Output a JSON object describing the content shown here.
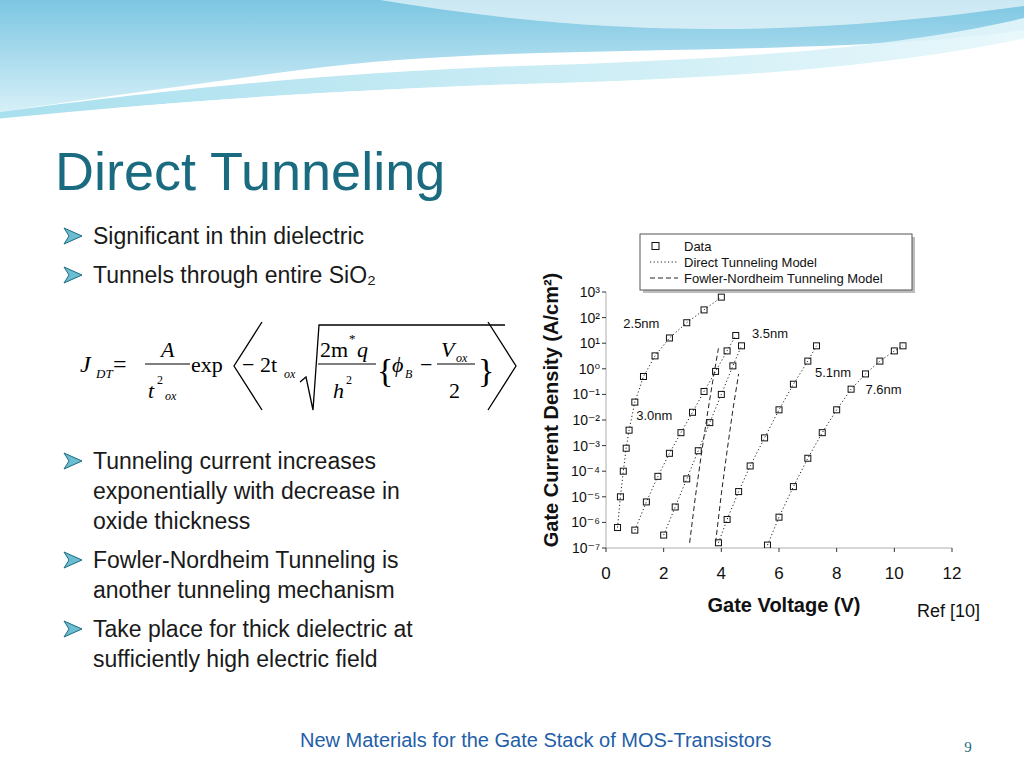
{
  "slide": {
    "title": "Direct Tunneling",
    "bullets_top": [
      [
        "Significant in thin dielectric"
      ],
      [
        "Tunnels through entire SiO₂"
      ]
    ],
    "formula": {
      "J": "J",
      "J_sub": "DT",
      "eq": "=",
      "num": "A",
      "den": "t",
      "den_sup": "2",
      "den_sub": "ox",
      "func": "exp",
      "coef": "− 2t",
      "coef_sub": "ox",
      "inner_num": "2m",
      "inner_sup": "*",
      "inner_q": "q",
      "inner_den": "h",
      "inner_den_sup": "2",
      "lbrace": "{",
      "phi": "ϕ",
      "phi_sub": "B",
      "minus": "−",
      "v": "V",
      "v_sub": "ox",
      "two": "2",
      "rbrace": "}"
    },
    "bullets_bottom": [
      [
        "Tunneling current increases",
        "exponentially with decrease in",
        "oxide thickness"
      ],
      [
        "Fowler-Nordheim Tunneling is",
        "another tunneling mechanism"
      ],
      [
        "Take place for thick dielectric at",
        "sufficiently high electric field"
      ]
    ],
    "ref": "Ref [10]",
    "footer": "New Materials for the Gate Stack of MOS-Transistors",
    "page": "9"
  },
  "chart_data": {
    "type": "line",
    "x_label": "Gate Voltage (V)",
    "y_label": "Gate Current Density (A/cm²)",
    "log": "y",
    "xlim": [
      0,
      12
    ],
    "ylim": [
      1e-07,
      1000
    ],
    "xticks": [
      0,
      2,
      4,
      6,
      8,
      10,
      12
    ],
    "yticks": [
      {
        "value": 1e-07,
        "label": "10⁻⁷"
      },
      {
        "value": 1e-06,
        "label": "10⁻⁶"
      },
      {
        "value": 1e-05,
        "label": "10⁻⁵"
      },
      {
        "value": 0.0001,
        "label": "10⁻⁴"
      },
      {
        "value": 0.001,
        "label": "10⁻³"
      },
      {
        "value": 0.01,
        "label": "10⁻²"
      },
      {
        "value": 0.1,
        "label": "10⁻¹"
      },
      {
        "value": 1,
        "label": "10⁰"
      },
      {
        "value": 10,
        "label": "10¹"
      },
      {
        "value": 100,
        "label": "10²"
      },
      {
        "value": 1000,
        "label": "10³"
      }
    ],
    "grid": false,
    "legend": "top",
    "series": [
      {
        "name": "Data",
        "marker": "square",
        "line_style": "none",
        "x": [
          0.4,
          0.5,
          0.6,
          0.7,
          0.8,
          1.0,
          1.3,
          1.7,
          2.2,
          2.8,
          3.4,
          4.0
        ],
        "values": [
          6.3e-07,
          1e-05,
          0.0001,
          0.00079,
          0.004,
          0.05,
          0.5,
          3.2,
          16,
          63,
          200,
          630
        ]
      },
      {
        "name": "Data",
        "marker": "square",
        "line_style": "none",
        "x": [
          1.0,
          1.4,
          1.8,
          2.2,
          2.6,
          3.0,
          3.4,
          3.8,
          4.2,
          4.5
        ],
        "values": [
          5e-07,
          6.3e-06,
          6.3e-05,
          0.0005,
          0.0032,
          0.02,
          0.13,
          0.79,
          5,
          20
        ]
      },
      {
        "name": "Data",
        "marker": "square",
        "line_style": "none",
        "x": [
          2.0,
          2.4,
          2.8,
          3.2,
          3.6,
          4.0,
          4.4,
          4.7
        ],
        "values": [
          3.2e-07,
          4e-06,
          5e-05,
          0.00063,
          0.0079,
          0.1,
          1.3,
          7.9
        ]
      },
      {
        "name": "Data",
        "marker": "square",
        "line_style": "none",
        "x": [
          3.9,
          4.2,
          4.6,
          5.0,
          5.5,
          6.0,
          6.5,
          7.0,
          7.3
        ],
        "values": [
          1.6e-07,
          1.3e-06,
          1.6e-05,
          0.00016,
          0.002,
          0.025,
          0.25,
          2,
          7.9
        ]
      },
      {
        "name": "Data",
        "marker": "square",
        "line_style": "none",
        "x": [
          5.6,
          6.0,
          6.5,
          7.0,
          7.5,
          8.0,
          8.5,
          9.0,
          9.5,
          10.0,
          10.3
        ],
        "values": [
          1.3e-07,
          1.6e-06,
          2.5e-05,
          0.00032,
          0.0032,
          0.025,
          0.16,
          0.63,
          2,
          5,
          7.9
        ]
      },
      {
        "name": "Direct Tunneling Model",
        "marker": "none",
        "line_style": "dotted",
        "x": [
          0.4,
          0.5,
          0.6,
          0.7,
          0.8,
          1.0,
          1.3,
          1.7,
          2.2,
          2.8,
          3.4,
          4.0
        ],
        "values": [
          6.3e-07,
          1e-05,
          0.0001,
          0.00079,
          0.004,
          0.05,
          0.5,
          3.2,
          16,
          63,
          200,
          630
        ]
      },
      {
        "name": "Direct Tunneling Model",
        "marker": "none",
        "line_style": "dotted",
        "x": [
          1.0,
          1.4,
          1.8,
          2.2,
          2.6,
          3.0,
          3.4,
          3.8,
          4.2,
          4.5
        ],
        "values": [
          5e-07,
          6.3e-06,
          6.3e-05,
          0.0005,
          0.0032,
          0.02,
          0.13,
          0.79,
          5,
          20
        ]
      },
      {
        "name": "Direct Tunneling Model",
        "marker": "none",
        "line_style": "dotted",
        "x": [
          2.0,
          2.4,
          2.8,
          3.2,
          3.6,
          4.0,
          4.4,
          4.7
        ],
        "values": [
          3.2e-07,
          4e-06,
          5e-05,
          0.00063,
          0.0079,
          0.1,
          1.3,
          7.9
        ]
      },
      {
        "name": "Direct Tunneling Model",
        "marker": "none",
        "line_style": "dotted",
        "x": [
          3.9,
          4.2,
          4.6,
          5.0,
          5.5,
          6.0,
          6.5,
          7.0,
          7.3
        ],
        "values": [
          1.6e-07,
          1.3e-06,
          1.6e-05,
          0.00016,
          0.002,
          0.025,
          0.25,
          2,
          7.9
        ]
      },
      {
        "name": "Direct Tunneling Model",
        "marker": "none",
        "line_style": "dotted",
        "x": [
          5.6,
          6.0,
          6.5,
          7.0,
          7.5,
          8.0,
          8.5,
          9.0,
          9.5,
          10.0,
          10.3
        ],
        "values": [
          1.3e-07,
          1.6e-06,
          2.5e-05,
          0.00032,
          0.0032,
          0.025,
          0.16,
          0.63,
          2,
          5,
          7.9
        ]
      },
      {
        "name": "Fowler-Nordheim Tunneling Model",
        "marker": "none",
        "line_style": "dashed",
        "x": [
          2.9,
          3.1,
          3.3,
          3.5,
          3.7,
          3.9
        ],
        "values": [
          1.6e-07,
          1e-05,
          0.0004,
          0.013,
          0.32,
          6.3
        ]
      },
      {
        "name": "Fowler-Nordheim Tunneling Model",
        "marker": "none",
        "line_style": "dashed",
        "x": [
          3.8,
          4.0,
          4.2,
          4.4,
          4.6
        ],
        "values": [
          1.6e-07,
          1.3e-05,
          0.00063,
          0.025,
          0.63
        ]
      }
    ],
    "annotations": [
      {
        "text": "2.5nm",
        "x": 0.6,
        "y": 40
      },
      {
        "text": "3.0nm",
        "x": 1.05,
        "y": 0.01
      },
      {
        "text": "3.5nm",
        "x": 5.06,
        "y": 16
      },
      {
        "text": "5.1nm",
        "x": 7.25,
        "y": 0.5
      },
      {
        "text": "7.6nm",
        "x": 9.0,
        "y": 0.1
      }
    ]
  }
}
